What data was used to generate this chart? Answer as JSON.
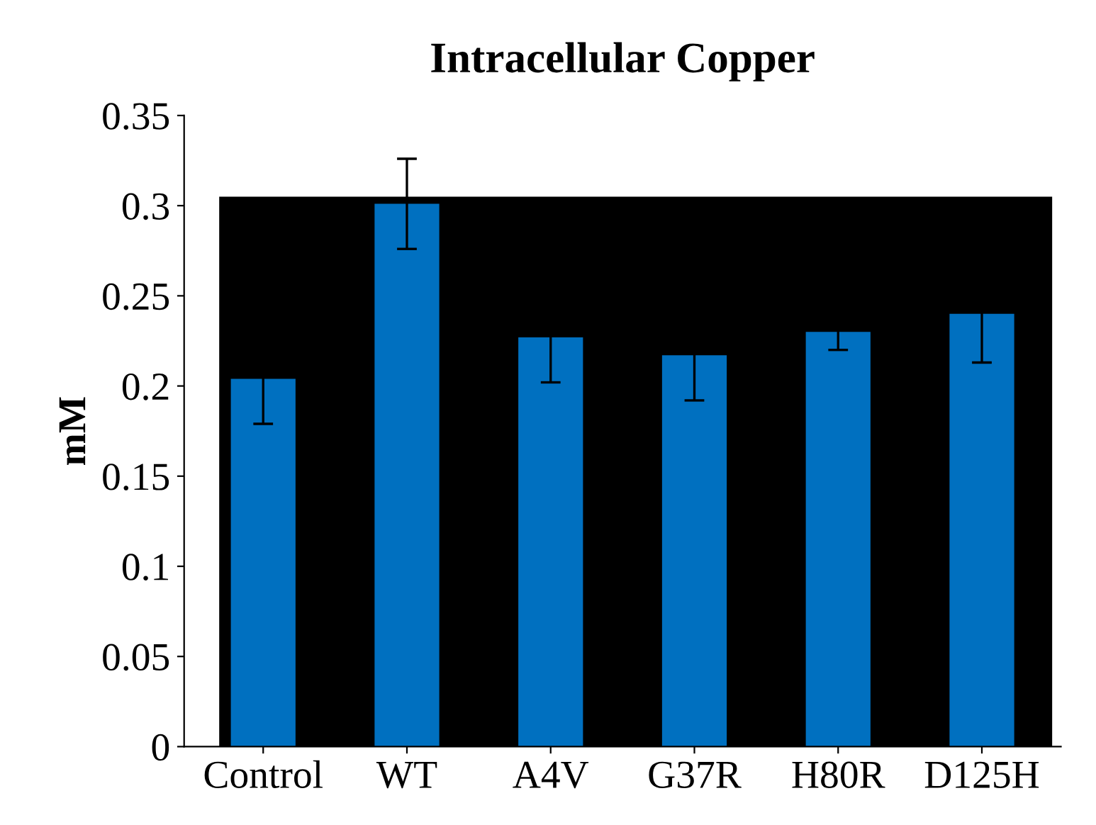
{
  "chart_data": {
    "type": "bar",
    "title": "Intracellular Copper",
    "ylabel": "mM",
    "categories": [
      "Control",
      "WT",
      "A4V",
      "G37R",
      "H80R",
      "D125H"
    ],
    "values": [
      0.204,
      0.301,
      0.227,
      0.217,
      0.23,
      0.24
    ],
    "errors": [
      0.025,
      0.025,
      0.025,
      0.025,
      0.01,
      0.027
    ],
    "color": "#0070c0",
    "ylim": [
      0,
      0.35
    ],
    "yticks": [
      {
        "value": 0,
        "label": "0"
      },
      0.05,
      0.1,
      0.15,
      0.2,
      0.25,
      0.3,
      0.35
    ],
    "bands": [
      {
        "axis": "y",
        "from": 0,
        "to": 0.305,
        "color": "#000000"
      }
    ],
    "grid": false
  }
}
